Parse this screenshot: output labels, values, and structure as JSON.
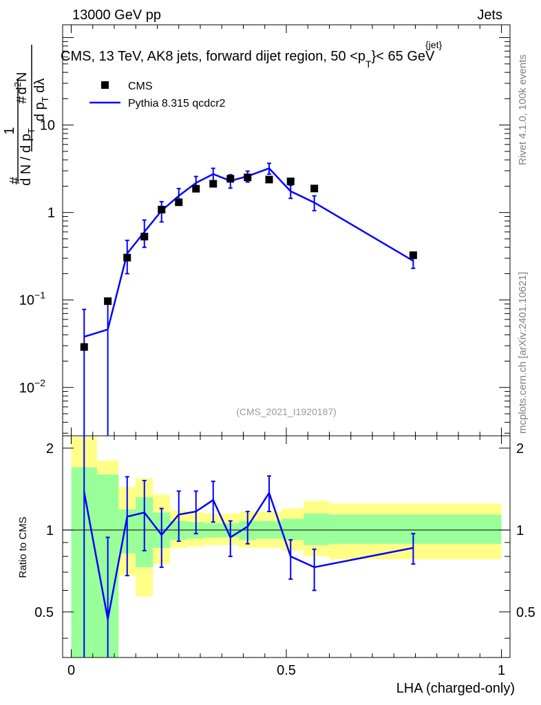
{
  "header": {
    "left": "13000 GeV pp",
    "right": "Jets"
  },
  "side_labels": {
    "rivet": "Rivet 4.1.0,  100k events",
    "mcplots": "mcplots.cern.ch [arXiv:2401.10621]"
  },
  "chart_data": {
    "type": "line",
    "title": "CMS, 13 TeV, AK8 jets, forward dijet region, 50 <p",
    "title_sup": "{jet}",
    "title_sub": "T",
    "title_end": "}< 65 GeV",
    "analysis_id": "(CMS_2021_I1920187)",
    "xlabel": "LHA (charged-only)",
    "xlim": [
      -0.02,
      1.02
    ],
    "x_ticks": [
      "0",
      "0.5",
      "1"
    ],
    "ylabel": {
      "frac_top": "1",
      "frac_bottom": "d N / d p",
      "frac_bottom_sub": "T",
      "hash": "#",
      "deriv_top": "d",
      "deriv_top_sup": "2",
      "deriv_top_end": "N",
      "deriv_bottom": "d p",
      "deriv_bottom_sub": "T",
      "deriv_bottom_end": " dλ"
    },
    "main_ylim": [
      0.0028,
      140
    ],
    "main_y_ticks": [
      "10",
      "1",
      "10",
      "10"
    ],
    "main_y_tick_exps": [
      "",
      "",
      "−1",
      "−2"
    ],
    "legend": [
      "CMS",
      "Pythia 8.315 qcdcr2"
    ],
    "series": [
      {
        "name": "CMS",
        "x": [
          0.03,
          0.085,
          0.13,
          0.17,
          0.21,
          0.25,
          0.29,
          0.33,
          0.37,
          0.41,
          0.46,
          0.51,
          0.565,
          0.795
        ],
        "y": [
          0.029,
          0.097,
          0.305,
          0.53,
          1.08,
          1.31,
          1.87,
          2.13,
          2.43,
          2.52,
          2.38,
          2.27,
          1.88,
          0.325
        ]
      },
      {
        "name": "Pythia 8.315 qcdcr2",
        "x": [
          0.03,
          0.085,
          0.13,
          0.17,
          0.21,
          0.25,
          0.29,
          0.33,
          0.37,
          0.41,
          0.46,
          0.51,
          0.565,
          0.795
        ],
        "y": [
          0.038,
          0.046,
          0.34,
          0.6,
          1.05,
          1.55,
          2.18,
          2.75,
          2.3,
          2.6,
          3.2,
          1.75,
          1.3,
          0.28
        ],
        "err_low": [
          0.038,
          0.044,
          0.14,
          0.2,
          0.27,
          0.33,
          0.38,
          0.45,
          0.4,
          0.37,
          0.45,
          0.3,
          0.25,
          0.05
        ],
        "err_high": [
          0.04,
          0.05,
          0.14,
          0.22,
          0.28,
          0.33,
          0.4,
          0.45,
          0.4,
          0.37,
          0.45,
          0.3,
          0.25,
          0.05
        ]
      }
    ],
    "ratio": {
      "ylabel": "Ratio to CMS",
      "ylim": [
        0.34,
        2.22
      ],
      "y_ticks": [
        "2",
        "1",
        "0.5"
      ],
      "y_tick_values": [
        2,
        1,
        0.5
      ],
      "line": [
        1.38,
        0.47,
        1.12,
        1.16,
        0.96,
        1.14,
        1.17,
        1.29,
        0.94,
        1.03,
        1.37,
        0.8,
        0.73,
        0.86
      ],
      "line_err_low": [
        1.36,
        0.47,
        0.44,
        0.32,
        0.23,
        0.23,
        0.2,
        0.22,
        0.14,
        0.14,
        0.2,
        0.14,
        0.13,
        0.11
      ],
      "line_err_high": [
        1.36,
        0.47,
        0.45,
        0.36,
        0.24,
        0.25,
        0.22,
        0.22,
        0.14,
        0.14,
        0.21,
        0.12,
        0.12,
        0.11
      ],
      "bands": [
        {
          "x0": 0.0,
          "x1": 0.06,
          "yellow": [
            0.3,
            2.2
          ],
          "green": [
            0.3,
            1.7
          ]
        },
        {
          "x0": 0.06,
          "x1": 0.11,
          "yellow": [
            0.3,
            1.8
          ],
          "green": [
            0.3,
            1.6
          ]
        },
        {
          "x0": 0.11,
          "x1": 0.15,
          "yellow": [
            0.68,
            1.44
          ],
          "green": [
            0.82,
            1.19
          ]
        },
        {
          "x0": 0.15,
          "x1": 0.19,
          "yellow": [
            0.57,
            1.55
          ],
          "green": [
            0.73,
            1.32
          ]
        },
        {
          "x0": 0.19,
          "x1": 0.23,
          "yellow": [
            0.75,
            1.35
          ],
          "green": [
            0.86,
            1.16
          ]
        },
        {
          "x0": 0.23,
          "x1": 0.27,
          "yellow": [
            0.86,
            1.18
          ],
          "green": [
            0.92,
            1.08
          ]
        },
        {
          "x0": 0.27,
          "x1": 0.31,
          "yellow": [
            0.87,
            1.16
          ],
          "green": [
            0.93,
            1.07
          ]
        },
        {
          "x0": 0.31,
          "x1": 0.35,
          "yellow": [
            0.88,
            1.15
          ],
          "green": [
            0.94,
            1.06
          ]
        },
        {
          "x0": 0.35,
          "x1": 0.39,
          "yellow": [
            0.88,
            1.15
          ],
          "green": [
            0.94,
            1.06
          ]
        },
        {
          "x0": 0.39,
          "x1": 0.43,
          "yellow": [
            0.86,
            1.17
          ],
          "green": [
            0.92,
            1.08
          ]
        },
        {
          "x0": 0.43,
          "x1": 0.49,
          "yellow": [
            0.86,
            1.17
          ],
          "green": [
            0.93,
            1.08
          ]
        },
        {
          "x0": 0.49,
          "x1": 0.54,
          "yellow": [
            0.84,
            1.2
          ],
          "green": [
            0.92,
            1.1
          ]
        },
        {
          "x0": 0.54,
          "x1": 0.6,
          "yellow": [
            0.8,
            1.28
          ],
          "green": [
            0.88,
            1.15
          ]
        },
        {
          "x0": 0.6,
          "x1": 1.0,
          "yellow": [
            0.78,
            1.25
          ],
          "green": [
            0.89,
            1.14
          ]
        }
      ]
    },
    "colors": {
      "cms": "#000000",
      "pythia": "#0000ff",
      "band_yellow": "#ffff88",
      "band_green": "#99ff99",
      "watermark": "#999999",
      "side_text": "#808080"
    }
  }
}
